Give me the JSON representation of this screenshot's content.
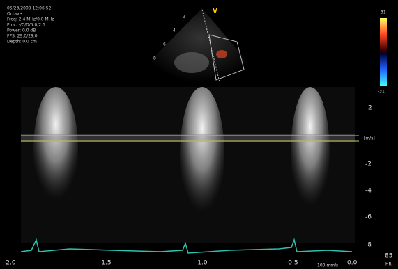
{
  "header": {
    "info_lines": [
      "05/23/2009 12:06:52",
      "Octave",
      "Freq: 2.4 MHz/0.0 MHz",
      "Proc: -/C/D/5.0/2.5",
      "Power: 0.0 dB",
      "FPS: 29.0/29.0",
      "Depth: 0.0 cm"
    ],
    "probe_mark": "V",
    "depth_marks": [
      "2",
      "4",
      "6",
      "8"
    ]
  },
  "color_bar": {
    "top": "31",
    "bottom": "-31"
  },
  "velocity_scale": {
    "labels": [
      "2",
      "[m/s]",
      "-2",
      "-4",
      "-6",
      "-8"
    ]
  },
  "time_axis": {
    "labels": [
      "-2.0",
      "-1.5",
      "-1.0",
      "-0.5",
      "0.0"
    ]
  },
  "footer": {
    "heart_rate": "85",
    "heart_rate_unit": "HR",
    "sweep_speed": "100 mm/s"
  }
}
